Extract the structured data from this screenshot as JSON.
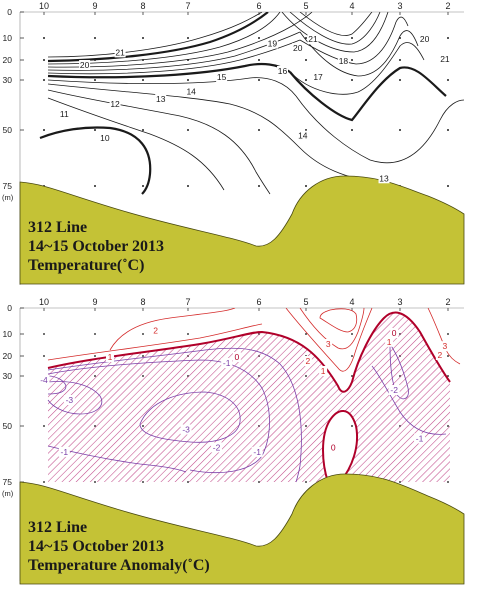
{
  "colors": {
    "terrain": "#c4c236",
    "terrain_edge": "#4a4a10",
    "temp_line": "#1a1a1a",
    "anom_pos": "#d42a2a",
    "anom_neg": "#7a3fa8",
    "anom_zero": "#b0002a",
    "hatch": "#c24a8a"
  },
  "chart_data": [
    {
      "type": "contour",
      "caption": [
        "312 Line",
        "14~15 October 2013",
        "Temperature(˚C)"
      ],
      "stations": [
        "10",
        "9",
        "8",
        "7",
        "6",
        "5",
        "4",
        "3",
        "2"
      ],
      "depth_ticks": [
        "0",
        "10",
        "20",
        "30",
        "50",
        "75"
      ],
      "depth_unit": "(m)",
      "contour_levels": [
        10,
        11,
        12,
        13,
        14,
        15,
        16,
        17,
        18,
        19,
        20,
        21
      ],
      "contour_labels": [
        {
          "text": "21",
          "x": "8.5",
          "depth": 17
        },
        {
          "text": "20",
          "x": "9.2",
          "depth": 23
        },
        {
          "text": "19",
          "x": "5.5",
          "depth": 13
        },
        {
          "text": "20",
          "x": "5.0",
          "depth": 15
        },
        {
          "text": "21",
          "x": "4.7",
          "depth": 11
        },
        {
          "text": "18",
          "x": "4.1",
          "depth": 21
        },
        {
          "text": "17",
          "x": "4.6",
          "depth": 29
        },
        {
          "text": "16",
          "x": "5.3",
          "depth": 26
        },
        {
          "text": "15",
          "x": "6.5",
          "depth": 29
        },
        {
          "text": "14",
          "x": "7.1",
          "depth": 35
        },
        {
          "text": "13",
          "x": "7.7",
          "depth": 38
        },
        {
          "text": "12",
          "x": "8.6",
          "depth": 40
        },
        {
          "text": "11",
          "x": "9.6",
          "depth": 44
        },
        {
          "text": "10",
          "x": "8.8",
          "depth": 54
        },
        {
          "text": "14",
          "x": "4.9",
          "depth": 53
        },
        {
          "text": "13",
          "x": "3.3",
          "depth": 72
        },
        {
          "text": "20",
          "x": "2.5",
          "depth": 11
        },
        {
          "text": "21",
          "x": "2.1",
          "depth": 20
        }
      ]
    },
    {
      "type": "contour",
      "caption": [
        "312 Line",
        "14~15 October 2013",
        "Temperature Anomaly(˚C)"
      ],
      "stations": [
        "10",
        "9",
        "8",
        "7",
        "6",
        "5",
        "4",
        "3",
        "2"
      ],
      "depth_ticks": [
        "0",
        "10",
        "20",
        "30",
        "50",
        "75"
      ],
      "depth_unit": "(m)",
      "contour_levels": [
        -4,
        -3,
        -2,
        -1,
        0,
        1,
        2,
        3
      ],
      "negative_region": "hatched",
      "contour_labels": [
        {
          "text": "2",
          "x": "7.8",
          "depth": 9
        },
        {
          "text": "1",
          "x": "8.7",
          "depth": 21
        },
        {
          "text": "0",
          "x": "6.2",
          "depth": 21
        },
        {
          "text": "-1",
          "x": "6.4",
          "depth": 24
        },
        {
          "text": "3",
          "x": "4.4",
          "depth": 15
        },
        {
          "text": "2",
          "x": "4.8",
          "depth": 23
        },
        {
          "text": "1",
          "x": "4.5",
          "depth": 28
        },
        {
          "text": "-4",
          "x": "10.0",
          "depth": 32
        },
        {
          "text": "-3",
          "x": "9.5",
          "depth": 40
        },
        {
          "text": "-3",
          "x": "7.2",
          "depth": 52
        },
        {
          "text": "-2",
          "x": "6.6",
          "depth": 60
        },
        {
          "text": "-1",
          "x": "9.6",
          "depth": 62
        },
        {
          "text": "-1",
          "x": "5.8",
          "depth": 62
        },
        {
          "text": "0",
          "x": "4.3",
          "depth": 60
        },
        {
          "text": "0",
          "x": "3.1",
          "depth": 10
        },
        {
          "text": "1",
          "x": "3.2",
          "depth": 14
        },
        {
          "text": "-2",
          "x": "3.1",
          "depth": 36
        },
        {
          "text": "-1",
          "x": "2.6",
          "depth": 56
        },
        {
          "text": "2",
          "x": "2.2",
          "depth": 20
        },
        {
          "text": "3",
          "x": "2.1",
          "depth": 16
        }
      ]
    }
  ]
}
